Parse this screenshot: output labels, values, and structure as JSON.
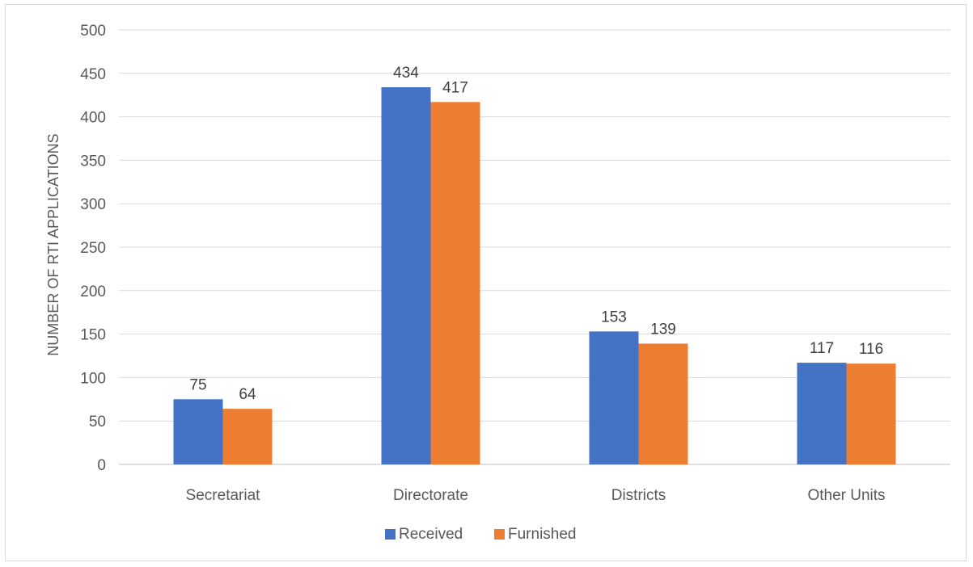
{
  "chart_data": {
    "type": "bar",
    "categories": [
      "Secretariat",
      "Directorate",
      "Districts",
      "Other Units"
    ],
    "series": [
      {
        "name": "Received",
        "color": "#4472C4",
        "values": [
          75,
          434,
          153,
          117
        ]
      },
      {
        "name": "Furnished",
        "color": "#ED7D31",
        "values": [
          64,
          417,
          139,
          116
        ]
      }
    ],
    "title": "",
    "xlabel": "",
    "ylabel": "NUMBER OF RTI APPLICATIONS",
    "ylim": [
      0,
      500
    ],
    "yticks": [
      0,
      50,
      100,
      150,
      200,
      250,
      300,
      350,
      400,
      450,
      500
    ],
    "grid": true,
    "legend": "bottom",
    "data_labels": true
  }
}
